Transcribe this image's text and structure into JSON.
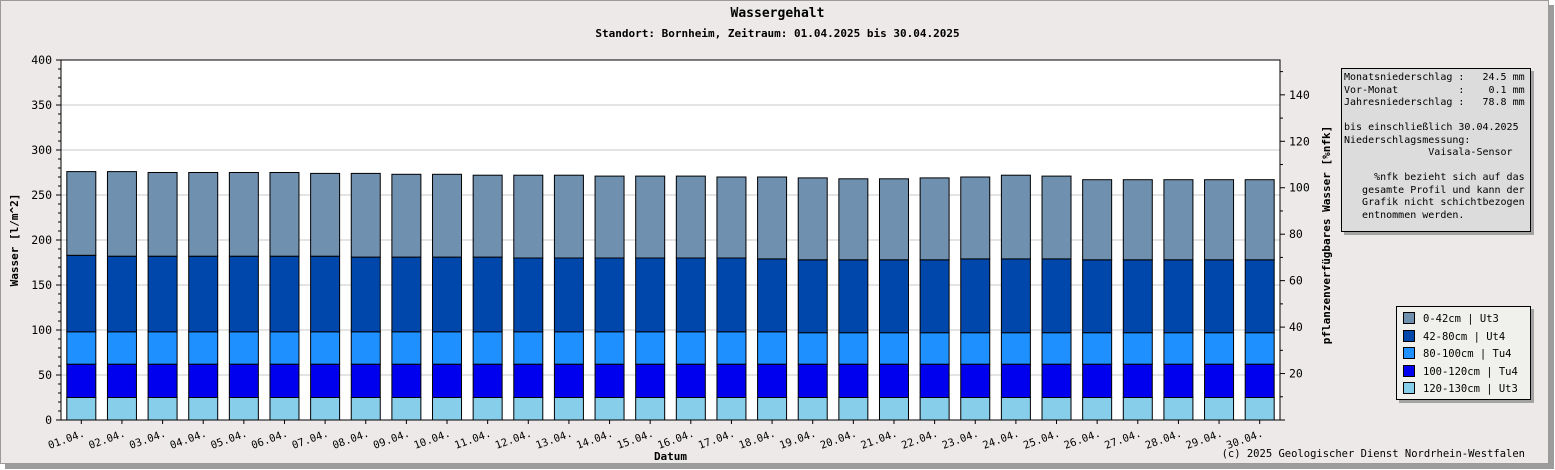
{
  "chart_data": {
    "type": "bar",
    "stacked": true,
    "title": "Wassergehalt",
    "subtitle": "Standort: Bornheim, Zeitraum: 01.04.2025 bis 30.04.2025",
    "xlabel": "Datum",
    "ylabel": "Wasser [l/m^2]",
    "y2label": "pflanzenverfügbares Wasser [%nfk]",
    "ylim": [
      0,
      400
    ],
    "yticks": [
      0,
      50,
      100,
      150,
      200,
      250,
      300,
      350,
      400
    ],
    "y2lim": [
      0,
      155
    ],
    "y2ticks": [
      20,
      40,
      60,
      80,
      100,
      120,
      140
    ],
    "grid": true,
    "legend_position": "right",
    "categories": [
      "01.04.",
      "02.04.",
      "03.04.",
      "04.04.",
      "05.04.",
      "06.04.",
      "07.04.",
      "08.04.",
      "09.04.",
      "10.04.",
      "11.04.",
      "12.04.",
      "13.04.",
      "14.04.",
      "15.04.",
      "16.04.",
      "17.04.",
      "18.04.",
      "19.04.",
      "20.04.",
      "21.04.",
      "22.04.",
      "23.04.",
      "24.04.",
      "25.04.",
      "26.04.",
      "27.04.",
      "28.04.",
      "29.04.",
      "30.04."
    ],
    "series": [
      {
        "name": "120-130cm | Ut3",
        "color": "#87ceeb",
        "values": [
          25,
          25,
          25,
          25,
          25,
          25,
          25,
          25,
          25,
          25,
          25,
          25,
          25,
          25,
          25,
          25,
          25,
          25,
          25,
          25,
          25,
          25,
          25,
          25,
          25,
          25,
          25,
          25,
          25,
          25
        ]
      },
      {
        "name": "100-120cm | Tu4",
        "color": "#0000ee",
        "values": [
          37,
          37,
          37,
          37,
          37,
          37,
          37,
          37,
          37,
          37,
          37,
          37,
          37,
          37,
          37,
          37,
          37,
          37,
          37,
          37,
          37,
          37,
          37,
          37,
          37,
          37,
          37,
          37,
          37,
          37
        ]
      },
      {
        "name": "80-100cm | Tu4",
        "color": "#1e90ff",
        "values": [
          36,
          36,
          36,
          36,
          36,
          36,
          36,
          36,
          36,
          36,
          36,
          36,
          36,
          36,
          36,
          36,
          36,
          36,
          35,
          35,
          35,
          35,
          35,
          35,
          35,
          35,
          35,
          35,
          35,
          35
        ]
      },
      {
        "name": "42-80cm | Ut4",
        "color": "#0047ab",
        "values": [
          85,
          84,
          84,
          84,
          84,
          84,
          84,
          83,
          83,
          83,
          83,
          82,
          82,
          82,
          82,
          82,
          82,
          81,
          81,
          81,
          81,
          81,
          82,
          82,
          82,
          81,
          81,
          81,
          81,
          81
        ]
      },
      {
        "name": "0-42cm | Ut3",
        "color": "#7090b0",
        "values": [
          93,
          94,
          93,
          93,
          93,
          93,
          92,
          93,
          92,
          92,
          91,
          92,
          92,
          91,
          91,
          91,
          90,
          91,
          91,
          90,
          90,
          91,
          91,
          93,
          92,
          89,
          89,
          89,
          89,
          89
        ]
      }
    ]
  },
  "info_box": {
    "lines": [
      "Monatsniederschlag :   24.5 mm",
      "Vor-Monat          :    0.1 mm",
      "Jahresniederschlag :   78.8 mm",
      "",
      "bis einschließlich 30.04.2025",
      "Niederschlagsmessung:",
      "              Vaisala-Sensor",
      "",
      "     %nfk bezieht sich auf das",
      "   gesamte Profil und kann der",
      "   Grafik nicht schichtbezogen",
      "   entnommen werden."
    ]
  },
  "legend_items": [
    {
      "label": "0-42cm | Ut3",
      "color": "#7090b0"
    },
    {
      "label": "42-80cm | Ut4",
      "color": "#0047ab"
    },
    {
      "label": "80-100cm | Tu4",
      "color": "#1e90ff"
    },
    {
      "label": "100-120cm | Tu4",
      "color": "#0000ee"
    },
    {
      "label": "120-130cm | Ut3",
      "color": "#87ceeb"
    }
  ],
  "copyright": "(c) 2025 Geologischer Dienst Nordrhein-Westfalen"
}
